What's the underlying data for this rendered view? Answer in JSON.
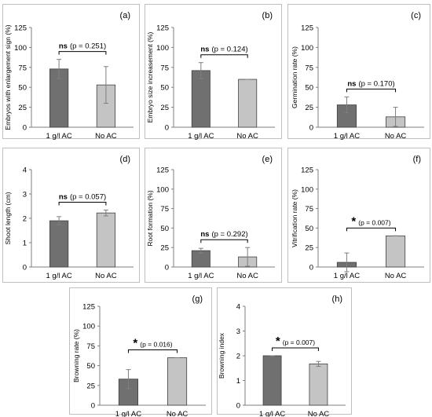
{
  "colors": {
    "bar_1": "#707070",
    "bar_2": "#c4c4c4",
    "frame": "#bfbfbf",
    "error": "#7f7f7f"
  },
  "chart_data": [
    {
      "type": "bar",
      "panel_label": "(a)",
      "ylabel": "Embryos with enlargement sign (%)",
      "categories": [
        "1 g/l AC",
        "No AC"
      ],
      "values": [
        73,
        53
      ],
      "errors": [
        12,
        23
      ],
      "ylim": [
        0,
        125
      ],
      "yticks": [
        0,
        25,
        50,
        75,
        100,
        125
      ],
      "significance": {
        "mark": "ns",
        "p_text": "(p = 0.251)"
      }
    },
    {
      "type": "bar",
      "panel_label": "(b)",
      "ylabel": "Embryo size increasement (%)",
      "categories": [
        "1 g/l AC",
        "No AC"
      ],
      "values": [
        71,
        60
      ],
      "errors": [
        10,
        0
      ],
      "ylim": [
        0,
        125
      ],
      "yticks": [
        0,
        25,
        50,
        75,
        100,
        125
      ],
      "significance": {
        "mark": "ns",
        "p_text": "(p = 0.124)"
      }
    },
    {
      "type": "bar",
      "panel_label": "(c)",
      "ylabel": "Germination rate (%)",
      "categories": [
        "1 g/l AC",
        "No AC"
      ],
      "values": [
        28,
        13
      ],
      "errors": [
        10,
        12
      ],
      "ylim": [
        0,
        125
      ],
      "yticks": [
        0,
        25,
        50,
        75,
        100,
        125
      ],
      "significance": {
        "mark": "ns",
        "p_text": "(p = 0.170)"
      }
    },
    {
      "type": "bar",
      "panel_label": "(d)",
      "ylabel": "Shoot length (cm)",
      "categories": [
        "1 g/l AC",
        "No AC"
      ],
      "values": [
        1.9,
        2.22
      ],
      "errors": [
        0.17,
        0.12
      ],
      "ylim": [
        0,
        4
      ],
      "yticks": [
        0,
        1,
        2,
        3,
        4
      ],
      "significance": {
        "mark": "ns",
        "p_text": "(p = 0.057)"
      }
    },
    {
      "type": "bar",
      "panel_label": "(e)",
      "ylabel": "Root formation (%)",
      "categories": [
        "1 g/l AC",
        "No AC"
      ],
      "values": [
        21,
        13
      ],
      "errors": [
        3,
        12
      ],
      "ylim": [
        0,
        125
      ],
      "yticks": [
        0,
        25,
        50,
        75,
        100,
        125
      ],
      "significance": {
        "mark": "ns",
        "p_text": "(p = 0.292)"
      }
    },
    {
      "type": "bar",
      "panel_label": "(f)",
      "ylabel": "Vitrification rate (%)",
      "categories": [
        "1 g/l AC",
        "No AC"
      ],
      "values": [
        6,
        40
      ],
      "errors": [
        12,
        0
      ],
      "ylim": [
        0,
        125
      ],
      "yticks": [
        0,
        25,
        50,
        75,
        100,
        125
      ],
      "significance": {
        "mark": "*",
        "p_text": "(p = 0.007)"
      }
    },
    {
      "type": "bar",
      "panel_label": "(g)",
      "ylabel": "Browning rate (%)",
      "categories": [
        "1 g/l AC",
        "No AC"
      ],
      "values": [
        33,
        60
      ],
      "errors": [
        12,
        0
      ],
      "ylim": [
        0,
        125
      ],
      "yticks": [
        0,
        25,
        50,
        75,
        100,
        125
      ],
      "significance": {
        "mark": "*",
        "p_text": "(p = 0.016)"
      }
    },
    {
      "type": "bar",
      "panel_label": "(h)",
      "ylabel": "Browning index",
      "categories": [
        "1 g/l AC",
        "No AC"
      ],
      "values": [
        2.0,
        1.67
      ],
      "errors": [
        0,
        0.1
      ],
      "ylim": [
        0,
        4
      ],
      "yticks": [
        0,
        1,
        2,
        3,
        4
      ],
      "significance": {
        "mark": "*",
        "p_text": "(p = 0.007)"
      }
    }
  ]
}
